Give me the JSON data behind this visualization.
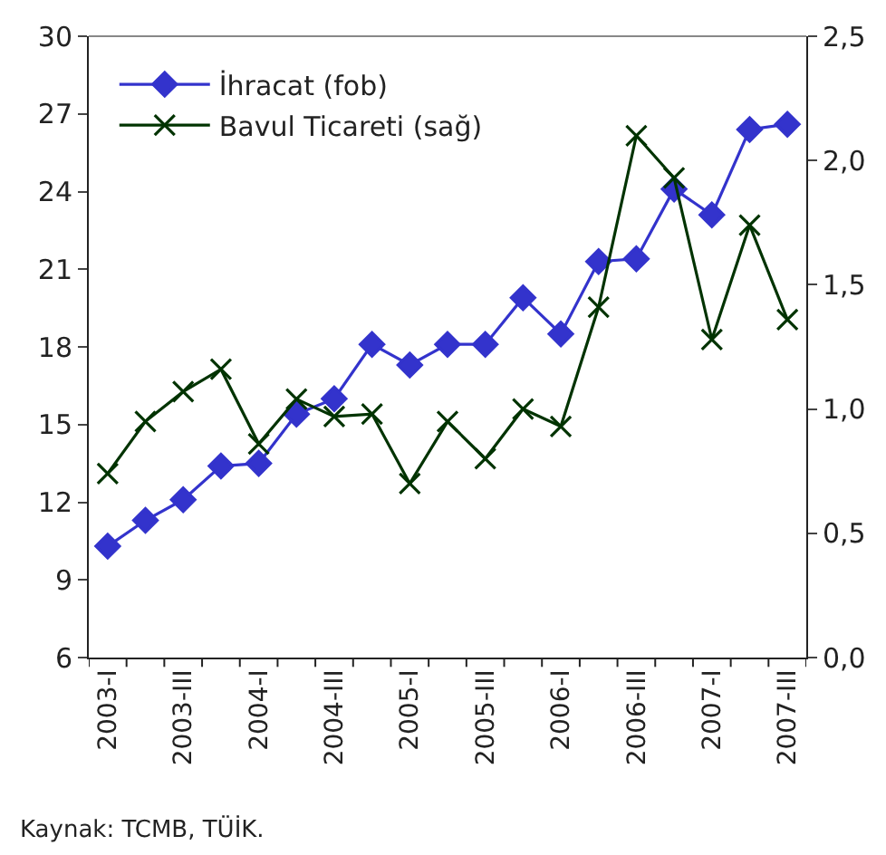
{
  "chart_data": {
    "type": "line",
    "categories": [
      "2003-I",
      null,
      "2003-III",
      null,
      "2004-I",
      null,
      "2004-III",
      null,
      "2005-I",
      null,
      "2005-III",
      null,
      "2006-I",
      null,
      "2006-III",
      null,
      "2007-I",
      null,
      "2007-III"
    ],
    "series": [
      {
        "name": "İhracat (fob)",
        "color": "#3333cc",
        "marker": "diamond",
        "values": [
          10.3,
          11.3,
          12.1,
          13.4,
          13.5,
          15.4,
          16.0,
          18.1,
          17.3,
          18.1,
          18.1,
          19.9,
          18.5,
          21.3,
          21.4,
          24.1,
          23.1,
          26.4,
          26.6
        ]
      },
      {
        "name": "Bavul Ticareti (sağ)",
        "color": "#003300",
        "marker": "cross",
        "axis": "y2",
        "values": [
          0.74,
          0.95,
          1.07,
          1.16,
          0.86,
          1.04,
          0.97,
          0.98,
          0.7,
          0.95,
          0.8,
          1.0,
          0.93,
          1.41,
          2.1,
          1.93,
          1.28,
          1.74,
          1.36
        ]
      }
    ],
    "ylim": [
      6,
      30
    ],
    "yticks": [
      6,
      9,
      12,
      15,
      18,
      21,
      24,
      27,
      30
    ],
    "y2lim": [
      0,
      2.5
    ],
    "y2ticks": [
      {
        "value": 0,
        "label": "0,0"
      },
      {
        "value": 0.5,
        "label": "0,5"
      },
      {
        "value": 1,
        "label": "1,0"
      },
      {
        "value": 1.5,
        "label": "1,5"
      },
      {
        "value": 2,
        "label": "2,0"
      },
      {
        "value": 2.5,
        "label": "2,5"
      }
    ],
    "legend": "top left",
    "annotations": [
      "Kaynak: TCMB, TÜİK."
    ]
  }
}
